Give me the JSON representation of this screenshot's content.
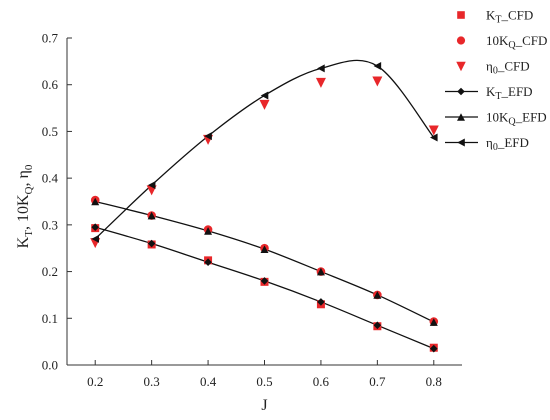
{
  "chart_data": {
    "type": "line",
    "title": "",
    "xlabel": "J",
    "ylabel": "KT, 10KQ, η0",
    "ylabel_parts": {
      "k": "K",
      "t_sub": "T",
      "sep1": ", 10K",
      "q_sub": "Q",
      "sep2": ", η",
      "zero_sub": "0"
    },
    "xlim": [
      0.15,
      0.85
    ],
    "ylim": [
      0,
      0.7
    ],
    "x_ticks": [
      0.2,
      0.3,
      0.4,
      0.5,
      0.6,
      0.7,
      0.8
    ],
    "y_ticks": [
      0.0,
      0.1,
      0.2,
      0.3,
      0.4,
      0.5,
      0.6,
      0.7
    ],
    "grid": false,
    "legend_position": "top-right",
    "x": [
      0.2,
      0.3,
      0.4,
      0.5,
      0.6,
      0.7,
      0.8
    ],
    "series": [
      {
        "name": "KT_CFD",
        "label_main": "K",
        "label_sub": "T",
        "label_suffix": "_CFD",
        "kind": "marker",
        "marker": "square",
        "color": "#e8272a",
        "values": [
          0.293,
          0.258,
          0.224,
          0.178,
          0.13,
          0.083,
          0.037
        ]
      },
      {
        "name": "10KQ_CFD",
        "label_main": "10K",
        "label_sub": "Q",
        "label_suffix": "_CFD",
        "kind": "marker",
        "marker": "circle",
        "color": "#e8272a",
        "values": [
          0.353,
          0.32,
          0.29,
          0.25,
          0.2,
          0.15,
          0.093
        ]
      },
      {
        "name": "η0_CFD",
        "label_main": "η",
        "label_sub": "0",
        "label_suffix": "_CFD",
        "kind": "marker",
        "marker": "triangle-down",
        "color": "#e8272a",
        "values": [
          0.262,
          0.375,
          0.483,
          0.558,
          0.605,
          0.608,
          0.503
        ]
      },
      {
        "name": "KT_EFD",
        "label_main": "K",
        "label_sub": "T",
        "label_suffix": "_EFD",
        "kind": "line",
        "marker": "diamond",
        "color": "#111111",
        "values": [
          0.295,
          0.26,
          0.22,
          0.18,
          0.135,
          0.085,
          0.035
        ]
      },
      {
        "name": "10KQ_EFD",
        "label_main": "10K",
        "label_sub": "Q",
        "label_suffix": "_EFD",
        "kind": "line",
        "marker": "triangle-up",
        "color": "#111111",
        "values": [
          0.35,
          0.32,
          0.287,
          0.248,
          0.2,
          0.15,
          0.092
        ]
      },
      {
        "name": "η0_EFD",
        "label_main": "η",
        "label_sub": "0",
        "label_suffix": "_EFD",
        "kind": "line",
        "marker": "triangle-left",
        "color": "#111111",
        "values": [
          0.27,
          0.385,
          0.49,
          0.577,
          0.635,
          0.64,
          0.487
        ]
      }
    ]
  }
}
